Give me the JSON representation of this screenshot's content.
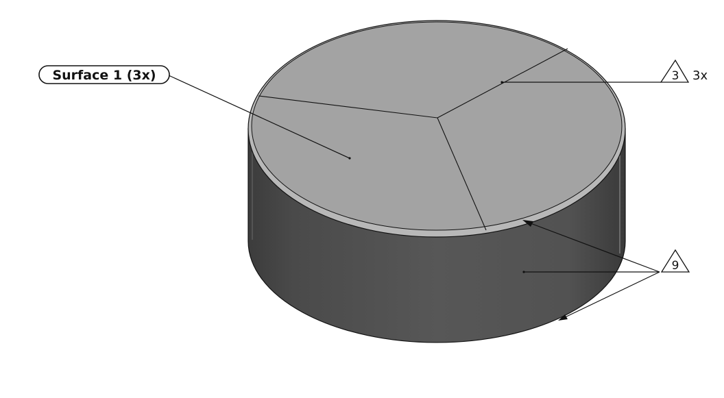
{
  "surface_tag": {
    "label": "Surface 1 (3x)"
  },
  "balloon_top": {
    "number": "3",
    "quantity": "3x"
  },
  "balloon_side": {
    "number": "9"
  },
  "colors": {
    "background": "#ffffff",
    "top_face": "#a4a4a4",
    "top_rim": "#b9b9b9",
    "side_dark": "#3a3a3a",
    "side_mid": "#555555",
    "edge": "#111111"
  }
}
